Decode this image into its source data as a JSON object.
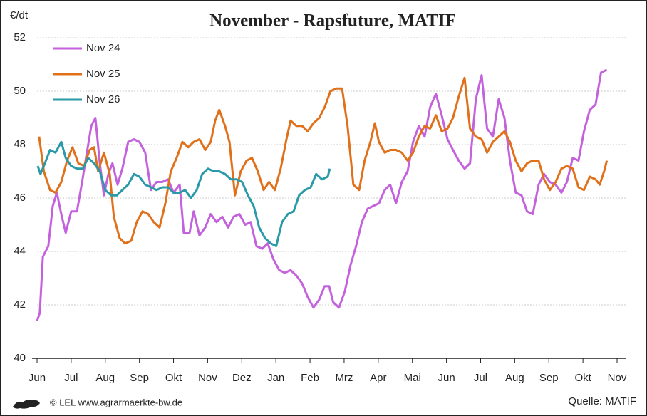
{
  "chart_data": {
    "type": "line",
    "title": "November - Rapsfuture, MATIF",
    "y_label": "€/dt",
    "footer_left": "© LEL www.agrarmaerkte-bw.de",
    "footer_right": "Quelle: MATIF",
    "xlim": [
      0,
      17
    ],
    "xticks": [
      {
        "value": 0,
        "label": "Jun"
      },
      {
        "value": 1,
        "label": "Jul"
      },
      {
        "value": 2,
        "label": "Aug"
      },
      {
        "value": 3,
        "label": "Sep"
      },
      {
        "value": 4,
        "label": "Okt"
      },
      {
        "value": 5,
        "label": "Nov"
      },
      {
        "value": 6,
        "label": "Dez"
      },
      {
        "value": 7,
        "label": "Jan"
      },
      {
        "value": 8,
        "label": "Feb"
      },
      {
        "value": 9,
        "label": "Mrz"
      },
      {
        "value": 10,
        "label": "Apr"
      },
      {
        "value": 11,
        "label": "Mai"
      },
      {
        "value": 12,
        "label": "Jun"
      },
      {
        "value": 13,
        "label": "Jul"
      },
      {
        "value": 14,
        "label": "Aug"
      },
      {
        "value": 15,
        "label": "Sep"
      },
      {
        "value": 16,
        "label": "Okt"
      },
      {
        "value": 17,
        "label": "Nov"
      }
    ],
    "ylim": [
      40,
      52
    ],
    "yticks": [
      40,
      42,
      44,
      46,
      48,
      50,
      52
    ],
    "grid": true,
    "legend": "top-left",
    "series": [
      {
        "name": "Nov 24",
        "color": "#c462de",
        "x": [
          0,
          0.08,
          0.17,
          0.33,
          0.46,
          0.58,
          0.71,
          0.84,
          1.0,
          1.17,
          1.32,
          1.46,
          1.59,
          1.71,
          1.84,
          1.96,
          2.09,
          2.21,
          2.36,
          2.5,
          2.67,
          2.84,
          3.0,
          3.17,
          3.34,
          3.5,
          3.67,
          3.84,
          4.0,
          4.18,
          4.3,
          4.47,
          4.59,
          4.76,
          4.93,
          5.09,
          5.26,
          5.43,
          5.6,
          5.76,
          5.93,
          6.1,
          6.26,
          6.43,
          6.6,
          6.76,
          6.93,
          7.1,
          7.26,
          7.43,
          7.6,
          7.77,
          7.93,
          8.1,
          8.27,
          8.43,
          8.56,
          8.68,
          8.85,
          9.02,
          9.19,
          9.35,
          9.52,
          9.69,
          9.85,
          10.02,
          10.19,
          10.35,
          10.52,
          10.69,
          10.86,
          11.02,
          11.19,
          11.36,
          11.52,
          11.69,
          11.86,
          12.03,
          12.19,
          12.36,
          12.53,
          12.69,
          12.86,
          13.03,
          13.19,
          13.36,
          13.53,
          13.7,
          13.86,
          14.03,
          14.2,
          14.36,
          14.53,
          14.7,
          14.86,
          15.03,
          15.2,
          15.37,
          15.53,
          15.7,
          15.87,
          16.03,
          16.2,
          16.37,
          16.53,
          16.7
        ],
        "values": [
          41.4,
          41.7,
          43.8,
          44.2,
          45.7,
          46.2,
          45.4,
          44.7,
          45.5,
          45.5,
          46.6,
          47.7,
          48.7,
          49.0,
          47.3,
          46.1,
          46.9,
          47.3,
          46.5,
          47.1,
          48.1,
          48.2,
          48.1,
          47.7,
          46.3,
          46.6,
          46.6,
          46.7,
          46.2,
          46.5,
          44.7,
          44.7,
          45.5,
          44.6,
          44.9,
          45.4,
          45.1,
          45.3,
          44.9,
          45.3,
          45.4,
          45.0,
          45.1,
          44.2,
          44.1,
          44.3,
          43.7,
          43.3,
          43.2,
          43.3,
          43.1,
          42.8,
          42.3,
          41.9,
          42.2,
          42.7,
          42.7,
          42.1,
          41.9,
          42.5,
          43.5,
          44.2,
          45.1,
          45.6,
          45.7,
          45.8,
          46.3,
          46.5,
          45.8,
          46.6,
          47.0,
          48.1,
          48.7,
          48.3,
          49.4,
          49.9,
          49.1,
          48.2,
          47.8,
          47.4,
          47.1,
          47.3,
          49.7,
          50.6,
          48.6,
          48.3,
          49.7,
          49.0,
          47.4,
          46.2,
          46.1,
          45.5,
          45.4,
          46.5,
          46.9,
          46.6,
          46.5,
          46.2,
          46.6,
          47.5,
          47.4,
          48.5,
          49.3,
          49.5,
          50.7,
          50.8
        ]
      },
      {
        "name": "Nov 25",
        "color": "#e0701a",
        "x": [
          0.06,
          0.2,
          0.38,
          0.54,
          0.71,
          0.88,
          1.04,
          1.21,
          1.38,
          1.54,
          1.67,
          1.79,
          1.96,
          2.13,
          2.25,
          2.42,
          2.58,
          2.76,
          2.92,
          3.09,
          3.26,
          3.42,
          3.59,
          3.76,
          3.92,
          4.09,
          4.26,
          4.43,
          4.59,
          4.76,
          4.93,
          5.09,
          5.22,
          5.34,
          5.51,
          5.64,
          5.8,
          5.97,
          6.14,
          6.3,
          6.47,
          6.64,
          6.8,
          6.97,
          7.14,
          7.31,
          7.43,
          7.6,
          7.77,
          7.93,
          8.1,
          8.27,
          8.43,
          8.6,
          8.77,
          8.94,
          9.1,
          9.27,
          9.44,
          9.6,
          9.77,
          9.9,
          10.02,
          10.19,
          10.35,
          10.52,
          10.69,
          10.86,
          11.02,
          11.19,
          11.36,
          11.52,
          11.69,
          11.86,
          12.03,
          12.19,
          12.36,
          12.53,
          12.69,
          12.86,
          13.03,
          13.19,
          13.36,
          13.53,
          13.7,
          13.86,
          14.03,
          14.2,
          14.36,
          14.53,
          14.7,
          14.86,
          15.03,
          15.2,
          15.37,
          15.53,
          15.7,
          15.87,
          16.03,
          16.2,
          16.37,
          16.49,
          16.62,
          16.7
        ],
        "values": [
          48.3,
          47.0,
          46.3,
          46.2,
          46.6,
          47.4,
          47.9,
          47.3,
          47.2,
          47.8,
          47.9,
          47.0,
          47.7,
          46.9,
          45.3,
          44.5,
          44.3,
          44.4,
          45.1,
          45.5,
          45.4,
          45.1,
          44.9,
          45.8,
          47.0,
          47.5,
          48.1,
          47.9,
          48.1,
          48.2,
          47.8,
          48.1,
          48.9,
          49.3,
          48.7,
          48.1,
          46.1,
          47.0,
          47.4,
          47.5,
          47.0,
          46.3,
          46.6,
          46.3,
          47.1,
          48.2,
          48.9,
          48.7,
          48.7,
          48.5,
          48.8,
          49.0,
          49.4,
          50.0,
          50.1,
          50.1,
          48.7,
          46.5,
          46.3,
          47.4,
          48.1,
          48.8,
          48.1,
          47.7,
          47.8,
          47.8,
          47.7,
          47.4,
          47.7,
          48.3,
          48.7,
          48.6,
          49.1,
          48.5,
          48.6,
          49.0,
          49.8,
          50.5,
          48.6,
          48.3,
          48.2,
          47.7,
          48.1,
          48.3,
          48.5,
          48.1,
          47.4,
          47.0,
          47.3,
          47.4,
          47.4,
          46.7,
          46.3,
          46.6,
          47.1,
          47.2,
          47.1,
          46.4,
          46.3,
          46.8,
          46.7,
          46.5,
          47.0,
          47.4
        ]
      },
      {
        "name": "Nov 26",
        "color": "#2a9aa8",
        "x": [
          0.02,
          0.1,
          0.23,
          0.38,
          0.54,
          0.71,
          0.84,
          1.0,
          1.17,
          1.34,
          1.5,
          1.67,
          1.84,
          2.0,
          2.17,
          2.34,
          2.5,
          2.67,
          2.84,
          3.0,
          3.17,
          3.34,
          3.5,
          3.67,
          3.84,
          4.0,
          4.18,
          4.34,
          4.51,
          4.68,
          4.84,
          5.01,
          5.18,
          5.34,
          5.51,
          5.68,
          5.85,
          6.01,
          6.18,
          6.35,
          6.51,
          6.68,
          6.85,
          7.01,
          7.18,
          7.35,
          7.52,
          7.68,
          7.85,
          8.02,
          8.18,
          8.35,
          8.52,
          8.58
        ],
        "values": [
          47.2,
          46.9,
          47.3,
          47.8,
          47.7,
          48.1,
          47.5,
          47.2,
          47.1,
          47.1,
          47.5,
          47.3,
          47.0,
          46.3,
          46.1,
          46.1,
          46.3,
          46.5,
          46.9,
          46.8,
          46.5,
          46.4,
          46.3,
          46.4,
          46.4,
          46.2,
          46.2,
          46.3,
          46.0,
          46.3,
          46.9,
          47.1,
          47.0,
          47.0,
          46.9,
          46.7,
          46.7,
          46.6,
          46.1,
          45.7,
          44.9,
          44.5,
          44.3,
          44.2,
          45.1,
          45.4,
          45.5,
          46.1,
          46.3,
          46.4,
          46.9,
          46.7,
          46.8,
          47.1
        ]
      }
    ]
  }
}
